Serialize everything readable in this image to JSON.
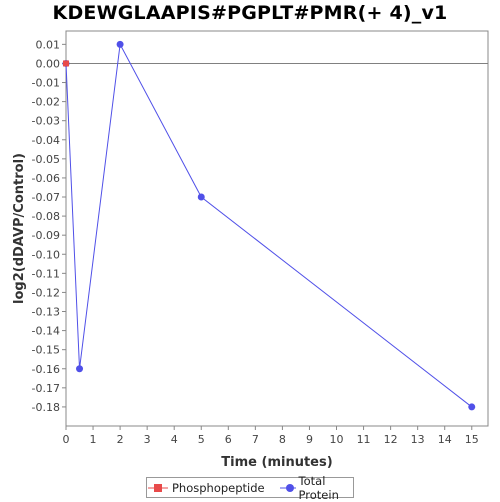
{
  "chart_data": {
    "type": "line",
    "title": "KDEWGLAAPIS#PGPLT#PMR(+ 4)_v1",
    "xlabel": "Time (minutes)",
    "ylabel": "log2(dDAVP/Control)",
    "xlim": [
      0,
      15.6
    ],
    "ylim": [
      -0.19,
      0.017
    ],
    "x_ticks": [
      0,
      1,
      2,
      3,
      4,
      5,
      6,
      7,
      8,
      9,
      10,
      11,
      12,
      13,
      14,
      15
    ],
    "y_ticks": [
      0.01,
      0.0,
      -0.01,
      -0.02,
      -0.03,
      -0.04,
      -0.05,
      -0.06,
      -0.07,
      -0.08,
      -0.09,
      -0.1,
      -0.11,
      -0.12,
      -0.13,
      -0.14,
      -0.15,
      -0.16,
      -0.17,
      -0.18
    ],
    "y_tick_labels": [
      "0.01",
      "0.00",
      "-0.01",
      "-0.02",
      "-0.03",
      "-0.04",
      "-0.05",
      "-0.06",
      "-0.07",
      "-0.08",
      "-0.09",
      "-0.10",
      "-0.11",
      "-0.12",
      "-0.13",
      "-0.14",
      "-0.15",
      "-0.16",
      "-0.17",
      "-0.18"
    ],
    "zero_line": 0,
    "grid": false,
    "legend_position": "bottom",
    "series": [
      {
        "name": "Phosphopeptide",
        "color": "#e84a4a",
        "marker": "square",
        "x": [
          0
        ],
        "y": [
          0
        ]
      },
      {
        "name": "Total Protein",
        "color": "#5050e8",
        "marker": "circle",
        "x": [
          0,
          0.5,
          2,
          5,
          15
        ],
        "y": [
          0,
          -0.16,
          0.01,
          -0.07,
          -0.18
        ]
      }
    ]
  }
}
